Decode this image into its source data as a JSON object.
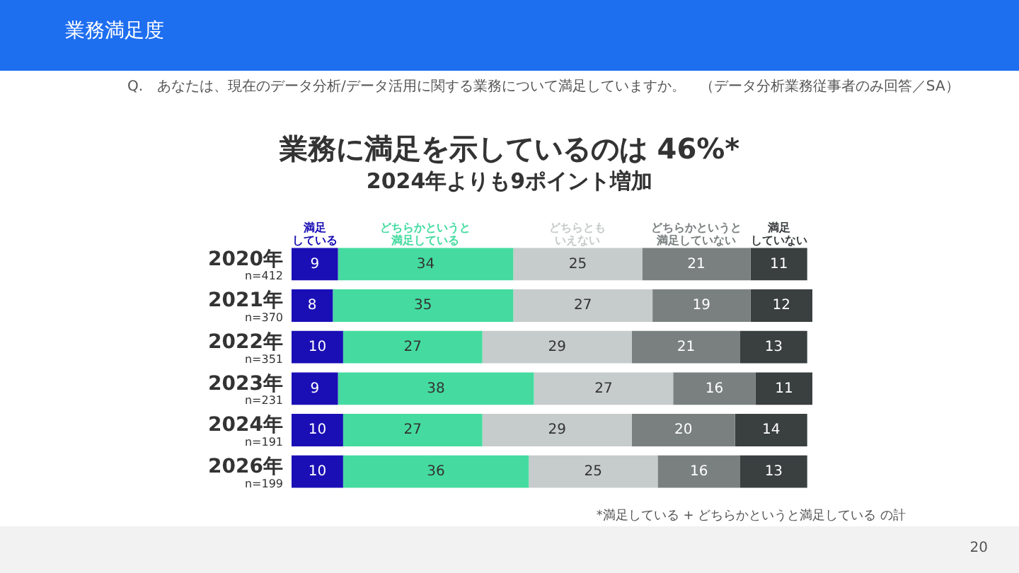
{
  "chart_data": {
    "type": "bar",
    "orientation": "horizontal",
    "stacked": true,
    "title": "業務満足度",
    "subtitle": "Q.　あなたは、現在のデータ分析/データ活用に関する業務について満足していますか。　（データ分析業務従事者のみ回答／SA）",
    "annotations": [
      "業務に満足を示しているのは 46%*",
      "2024年よりも9ポイント増加",
      "*満足している + どちらかというと満足している の計",
      "20"
    ],
    "categories": [
      "2020年\nn=412",
      "2021年\nn=370",
      "2022年\nn=351",
      "2023年\nn=231",
      "2024年\nn=191",
      "2026年\nn=199"
    ],
    "series": [
      {
        "name": "満足している",
        "color": "#1a0fb5",
        "values": [
          9,
          8,
          10,
          9,
          10,
          10
        ]
      },
      {
        "name": "どちらかというと満足している",
        "color": "#45dba0",
        "values": [
          34,
          35,
          27,
          38,
          27,
          36
        ]
      },
      {
        "name": "どちらともいえない",
        "color": "#c6cbcb",
        "values": [
          25,
          27,
          29,
          27,
          29,
          25
        ]
      },
      {
        "name": "どちらかというと満足していない",
        "color": "#7a8080",
        "values": [
          21,
          19,
          21,
          16,
          20,
          16
        ]
      },
      {
        "name": "満足していない",
        "color": "#3a3f40",
        "values": [
          11,
          12,
          13,
          11,
          14,
          13
        ]
      }
    ],
    "tick_labels": "y",
    "data_labels": true,
    "legend": "top"
  }
}
